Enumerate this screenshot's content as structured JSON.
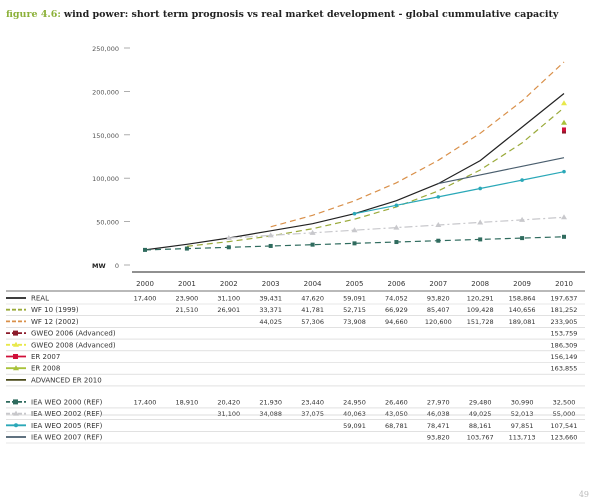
{
  "figure": {
    "label": "figure 4.6:",
    "title": "wind power: short term prognosis vs real market development - global cummulative capacity"
  },
  "page_number": "49",
  "chart_data": {
    "type": "line",
    "title": "wind power: short term prognosis vs real market development - global cummulative capacity",
    "ylabel": "MW",
    "ylim": [
      0,
      250000
    ],
    "yticks": [
      "0",
      "50,000",
      "100,000",
      "150,000",
      "200,000",
      "250,000"
    ],
    "categories": [
      "2000",
      "2001",
      "2002",
      "2003",
      "2004",
      "2005",
      "2006",
      "2007",
      "2008",
      "2009",
      "2010"
    ],
    "series": [
      {
        "name": "REAL",
        "style": "solid",
        "color": "#222222",
        "marker": "none",
        "values": [
          17400,
          23900,
          31100,
          39431,
          47620,
          59091,
          74052,
          93820,
          120291,
          158864,
          197637
        ],
        "labels": [
          "17,400",
          "23,900",
          "31,100",
          "39,431",
          "47,620",
          "59,091",
          "74,052",
          "93,820",
          "120,291",
          "158,864",
          "197,637"
        ]
      },
      {
        "name": "WF 10 (1999)",
        "style": "dashed",
        "color": "#9aaa3a",
        "marker": "none",
        "values": [
          null,
          21510,
          26901,
          33371,
          41781,
          52715,
          66929,
          85407,
          109428,
          140656,
          181252
        ],
        "labels": [
          "",
          "21,510",
          "26,901",
          "33,371",
          "41,781",
          "52,715",
          "66,929",
          "85,407",
          "109,428",
          "140,656",
          "181,252"
        ]
      },
      {
        "name": "WF 12 (2002)",
        "style": "dashed",
        "color": "#d9904a",
        "marker": "none",
        "values": [
          null,
          null,
          null,
          44025,
          57306,
          73908,
          94660,
          120600,
          151728,
          189081,
          233905
        ],
        "labels": [
          "",
          "",
          "",
          "44,025",
          "57,306",
          "73,908",
          "94,660",
          "120,600",
          "151,728",
          "189,081",
          "233,905"
        ]
      },
      {
        "name": "GWEO 2006 (Advanced)",
        "style": "dashed",
        "color": "#8b1a2a",
        "marker": "square",
        "values": [
          null,
          null,
          null,
          null,
          null,
          null,
          null,
          null,
          null,
          null,
          153759
        ],
        "labels": [
          "",
          "",
          "",
          "",
          "",
          "",
          "",
          "",
          "",
          "",
          "153,759"
        ]
      },
      {
        "name": "GWEO 2008 (Advanced)",
        "style": "dashed",
        "color": "#e8e84a",
        "marker": "triangle",
        "values": [
          null,
          null,
          null,
          null,
          null,
          null,
          null,
          null,
          null,
          null,
          186309
        ],
        "labels": [
          "",
          "",
          "",
          "",
          "",
          "",
          "",
          "",
          "",
          "",
          "186,309"
        ]
      },
      {
        "name": "ER 2007",
        "style": "solid",
        "color": "#d0103a",
        "marker": "square",
        "values": [
          null,
          null,
          null,
          null,
          null,
          null,
          null,
          null,
          null,
          null,
          156149
        ],
        "labels": [
          "",
          "",
          "",
          "",
          "",
          "",
          "",
          "",
          "",
          "",
          "156,149"
        ]
      },
      {
        "name": "ER 2008",
        "style": "solid",
        "color": "#a8c23a",
        "marker": "triangle",
        "values": [
          null,
          null,
          null,
          null,
          null,
          null,
          null,
          null,
          null,
          null,
          163855
        ],
        "labels": [
          "",
          "",
          "",
          "",
          "",
          "",
          "",
          "",
          "",
          "",
          "163,855"
        ]
      },
      {
        "name": "ADVANCED ER 2010",
        "style": "solid",
        "color": "#4a4a1a",
        "marker": "none",
        "values": [
          null,
          null,
          null,
          null,
          null,
          null,
          null,
          null,
          null,
          null,
          null
        ],
        "labels": [
          "",
          "",
          "",
          "",
          "",
          "",
          "",
          "",
          "",
          "",
          ""
        ]
      },
      {
        "name": "IEA WEO 2000 (REF)",
        "style": "dashed",
        "color": "#2f6b5e",
        "marker": "square",
        "values": [
          17400,
          18910,
          20420,
          21930,
          23440,
          24950,
          26460,
          27970,
          29480,
          30990,
          32500
        ],
        "labels": [
          "17,400",
          "18,910",
          "20,420",
          "21,930",
          "23,440",
          "24,950",
          "26,460",
          "27,970",
          "29,480",
          "30,990",
          "32,500"
        ]
      },
      {
        "name": "IEA WEO 2002 (REF)",
        "style": "dashdot",
        "color": "#c8c8cc",
        "marker": "triangle",
        "values": [
          null,
          null,
          31100,
          34088,
          37075,
          40063,
          43050,
          46038,
          49025,
          52013,
          55000
        ],
        "labels": [
          "",
          "",
          "31,100",
          "34,088",
          "37,075",
          "40,063",
          "43,050",
          "46,038",
          "49,025",
          "52,013",
          "55,000"
        ]
      },
      {
        "name": "IEA WEO 2005 (REF)",
        "style": "solid",
        "color": "#2aa8b8",
        "marker": "circle",
        "values": [
          null,
          null,
          null,
          null,
          null,
          59091,
          68781,
          78471,
          88161,
          97851,
          107541
        ],
        "labels": [
          "",
          "",
          "",
          "",
          "",
          "59,091",
          "68,781",
          "78,471",
          "88,161",
          "97,851",
          "107,541"
        ]
      },
      {
        "name": "IEA WEO 2007 (REF)",
        "style": "solid",
        "color": "#4a5e6e",
        "marker": "none",
        "values": [
          null,
          null,
          null,
          null,
          null,
          null,
          null,
          93820,
          103767,
          113713,
          123660
        ],
        "labels": [
          "",
          "",
          "",
          "",
          "",
          "",
          "",
          "93,820",
          "103,767",
          "113,713",
          "123,660"
        ]
      }
    ]
  }
}
